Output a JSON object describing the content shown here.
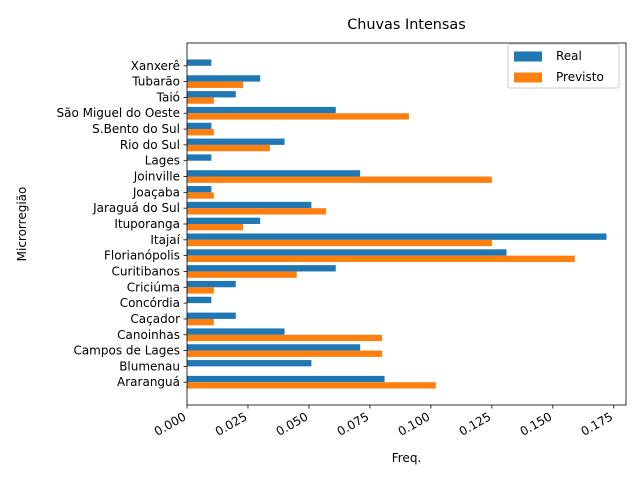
{
  "chart_data": {
    "type": "bar",
    "orientation": "horizontal",
    "title": "Chuvas Intensas",
    "xlabel": "Freq.",
    "ylabel": "Microrregião",
    "xlim": [
      0,
      0.18
    ],
    "xticks": [
      0.0,
      0.025,
      0.05,
      0.075,
      0.1,
      0.125,
      0.15,
      0.175
    ],
    "xtick_labels": [
      "0.000",
      "0.025",
      "0.050",
      "0.075",
      "0.100",
      "0.125",
      "0.150",
      "0.175"
    ],
    "grid": false,
    "legend_position": "top-right",
    "categories": [
      "Araranguá",
      "Blumenau",
      "Campos de Lages",
      "Canoinhas",
      "Caçador",
      "Concórdia",
      "Criciúma",
      "Curitibanos",
      "Florianópolis",
      "Itajaí",
      "Ituporanga",
      "Jaraguá do Sul",
      "Joaçaba",
      "Joinville",
      "Lages",
      "Rio do Sul",
      "S.Bento do Sul",
      "São Miguel do Oeste",
      "Taió",
      "Tubarão",
      "Xanxerê"
    ],
    "series": [
      {
        "name": "Real",
        "color": "#1f77b4",
        "values": [
          0.081,
          0.051,
          0.071,
          0.04,
          0.02,
          0.01,
          0.02,
          0.061,
          0.131,
          0.172,
          0.03,
          0.051,
          0.01,
          0.071,
          0.01,
          0.04,
          0.01,
          0.061,
          0.02,
          0.03,
          0.01
        ]
      },
      {
        "name": "Previsto",
        "color": "#ff7f0e",
        "values": [
          0.102,
          0.0,
          0.08,
          0.08,
          0.011,
          0.0,
          0.011,
          0.045,
          0.159,
          0.125,
          0.023,
          0.057,
          0.011,
          0.125,
          0.0,
          0.034,
          0.011,
          0.091,
          0.011,
          0.023,
          0.0
        ]
      }
    ]
  }
}
